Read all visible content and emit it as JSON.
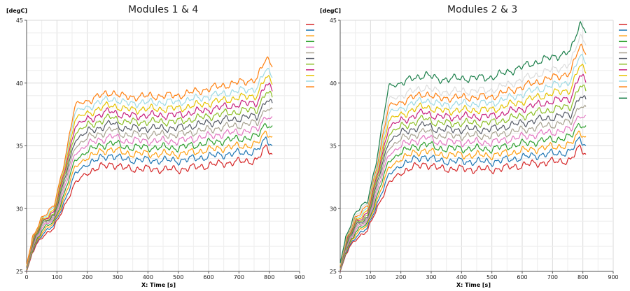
{
  "chart_data": [
    {
      "type": "line",
      "title": "Modules 1 & 4",
      "y_unit": "[degC]",
      "xlabel": "X: Time [s]",
      "xlim": [
        0,
        900
      ],
      "ylim": [
        25,
        45
      ],
      "x_ticks": [
        0,
        100,
        200,
        300,
        400,
        500,
        600,
        700,
        800,
        900
      ],
      "y_ticks": [
        25,
        30,
        35,
        40,
        45
      ],
      "grid": true,
      "legend_position": "right",
      "x_end": 810,
      "series_count": 12,
      "start": [
        25.0,
        25.05,
        25.1,
        25.15,
        25.2,
        25.25,
        25.3,
        25.35,
        25.4,
        25.45,
        25.5,
        25.55
      ],
      "at_50": [
        27.8,
        28.0,
        28.15,
        28.3,
        28.45,
        28.6,
        28.75,
        28.85,
        29.0,
        29.1,
        29.25,
        29.35
      ],
      "at_120": [
        30.0,
        30.3,
        30.6,
        30.9,
        31.2,
        31.5,
        31.8,
        32.1,
        32.4,
        32.7,
        33.0,
        33.2
      ],
      "plateau": [
        33.2,
        33.9,
        34.4,
        34.9,
        35.4,
        35.9,
        36.4,
        36.9,
        37.4,
        37.9,
        38.4,
        38.9
      ],
      "end": [
        34.4,
        35.1,
        35.7,
        36.4,
        37.0,
        37.6,
        38.2,
        38.8,
        39.4,
        40.0,
        40.6,
        41.5
      ],
      "colors": [
        "#d62728",
        "#1f77b4",
        "#ff9f0e",
        "#2ca02c",
        "#e377c2",
        "#a8a290",
        "#555a66",
        "#8cbf26",
        "#c71f7e",
        "#e6c300",
        "#9edae5",
        "#ff7f0e"
      ]
    },
    {
      "type": "line",
      "title": "Modules 2 & 3",
      "y_unit": "[degC]",
      "xlabel": "X: Time [s]",
      "xlim": [
        0,
        900
      ],
      "ylim": [
        25,
        45
      ],
      "x_ticks": [
        0,
        100,
        200,
        300,
        400,
        500,
        600,
        700,
        800,
        900
      ],
      "y_ticks": [
        25,
        30,
        35,
        40,
        45
      ],
      "grid": true,
      "legend_position": "right",
      "x_end": 810,
      "series_count": 14,
      "start": [
        25.0,
        25.05,
        25.1,
        25.15,
        25.2,
        25.25,
        25.3,
        25.35,
        25.4,
        25.45,
        25.5,
        25.55,
        25.6,
        25.65
      ],
      "at_50": [
        27.6,
        27.8,
        28.0,
        28.15,
        28.3,
        28.45,
        28.6,
        28.75,
        28.9,
        29.05,
        29.2,
        29.35,
        29.5,
        29.7
      ],
      "at_120": [
        30.0,
        30.3,
        30.6,
        30.9,
        31.2,
        31.5,
        31.8,
        32.1,
        32.4,
        32.7,
        33.0,
        33.3,
        33.6,
        33.9
      ],
      "plateau": [
        33.2,
        33.8,
        34.3,
        34.8,
        35.3,
        35.8,
        36.3,
        36.8,
        37.3,
        37.8,
        38.3,
        38.8,
        39.3,
        40.3
      ],
      "end": [
        34.4,
        35.1,
        35.7,
        36.4,
        37.1,
        37.8,
        38.5,
        39.3,
        40.1,
        40.9,
        41.7,
        42.5,
        43.3,
        44.3
      ],
      "colors": [
        "#d62728",
        "#1f77b4",
        "#ff9f0e",
        "#2ca02c",
        "#e377c2",
        "#a8a290",
        "#555a66",
        "#8cbf26",
        "#c71f7e",
        "#e6c300",
        "#9edae5",
        "#ff7f0e",
        "#dcdcdc",
        "#1b7f4a"
      ]
    }
  ]
}
